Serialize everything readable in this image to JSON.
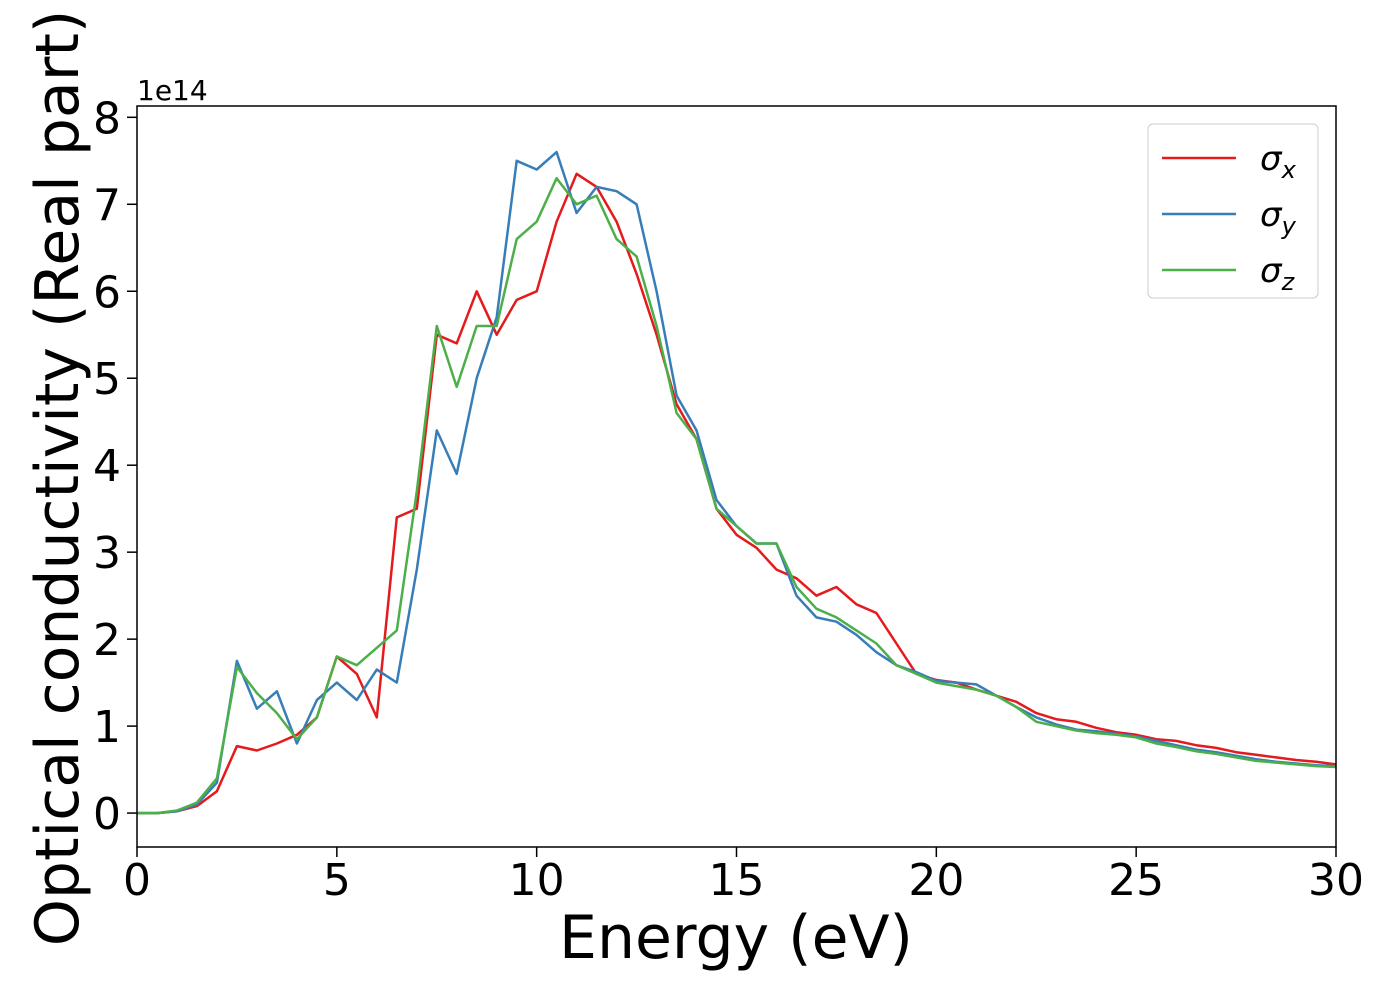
{
  "chart_data": {
    "type": "line",
    "xlabel": "Energy (eV)",
    "ylabel": "Optical conductivity (Real part)",
    "y_offset_label": "1e14",
    "x": [
      0,
      0.5,
      1,
      1.5,
      2,
      2.5,
      3,
      3.5,
      4,
      4.5,
      5,
      5.5,
      6,
      6.5,
      7,
      7.5,
      8,
      8.5,
      9,
      9.5,
      10,
      10.5,
      11,
      11.5,
      12,
      12.5,
      13,
      13.5,
      14,
      14.5,
      15,
      15.5,
      16,
      16.5,
      17,
      17.5,
      18,
      18.5,
      19,
      19.5,
      20,
      20.5,
      21,
      21.5,
      22,
      22.5,
      23,
      23.5,
      24,
      24.5,
      25,
      25.5,
      26,
      26.5,
      27,
      27.5,
      28,
      28.5,
      29,
      29.5,
      30
    ],
    "series": [
      {
        "name": "σx",
        "color": "#e41a1c",
        "values": [
          0,
          0,
          0.02,
          0.08,
          0.25,
          0.77,
          0.72,
          0.8,
          0.9,
          1.1,
          1.8,
          1.6,
          1.1,
          3.4,
          3.5,
          5.5,
          5.4,
          6.0,
          5.5,
          5.9,
          6.0,
          6.8,
          7.35,
          7.2,
          6.8,
          6.2,
          5.5,
          4.7,
          4.3,
          3.5,
          3.2,
          3.05,
          2.8,
          2.7,
          2.5,
          2.6,
          2.4,
          2.3,
          1.95,
          1.6,
          1.53,
          1.5,
          1.42,
          1.35,
          1.28,
          1.15,
          1.08,
          1.05,
          0.98,
          0.93,
          0.9,
          0.85,
          0.83,
          0.78,
          0.75,
          0.7,
          0.67,
          0.64,
          0.61,
          0.59,
          0.56
        ]
      },
      {
        "name": "σy",
        "color": "#377eb8",
        "values": [
          0,
          0,
          0.02,
          0.1,
          0.35,
          1.75,
          1.2,
          1.4,
          0.8,
          1.3,
          1.5,
          1.3,
          1.65,
          1.5,
          2.8,
          4.4,
          3.9,
          5.0,
          5.7,
          7.5,
          7.4,
          7.6,
          6.9,
          7.2,
          7.15,
          7.0,
          6.0,
          4.8,
          4.4,
          3.6,
          3.3,
          3.1,
          3.1,
          2.5,
          2.25,
          2.2,
          2.05,
          1.85,
          1.7,
          1.62,
          1.52,
          1.5,
          1.48,
          1.35,
          1.22,
          1.1,
          1.02,
          0.96,
          0.94,
          0.91,
          0.88,
          0.83,
          0.78,
          0.73,
          0.7,
          0.66,
          0.62,
          0.59,
          0.57,
          0.55,
          0.54
        ]
      },
      {
        "name": "σz",
        "color": "#4daf4a",
        "values": [
          0,
          0,
          0.03,
          0.12,
          0.4,
          1.68,
          1.38,
          1.15,
          0.85,
          1.1,
          1.8,
          1.7,
          1.9,
          2.1,
          3.7,
          5.6,
          4.9,
          5.6,
          5.6,
          6.6,
          6.8,
          7.3,
          7.0,
          7.1,
          6.6,
          6.4,
          5.6,
          4.6,
          4.3,
          3.5,
          3.3,
          3.1,
          3.1,
          2.6,
          2.35,
          2.25,
          2.1,
          1.95,
          1.7,
          1.6,
          1.5,
          1.46,
          1.42,
          1.35,
          1.22,
          1.05,
          1.0,
          0.95,
          0.92,
          0.9,
          0.87,
          0.8,
          0.76,
          0.71,
          0.68,
          0.64,
          0.6,
          0.58,
          0.56,
          0.54,
          0.53
        ]
      }
    ],
    "xlim": [
      0,
      30
    ],
    "xticks": [
      0,
      5,
      10,
      15,
      20,
      25,
      30
    ],
    "ylim": [
      -0.39,
      8.13
    ],
    "yticks": [
      0,
      1,
      2,
      3,
      4,
      5,
      6,
      7,
      8
    ],
    "legend": "upper right"
  }
}
